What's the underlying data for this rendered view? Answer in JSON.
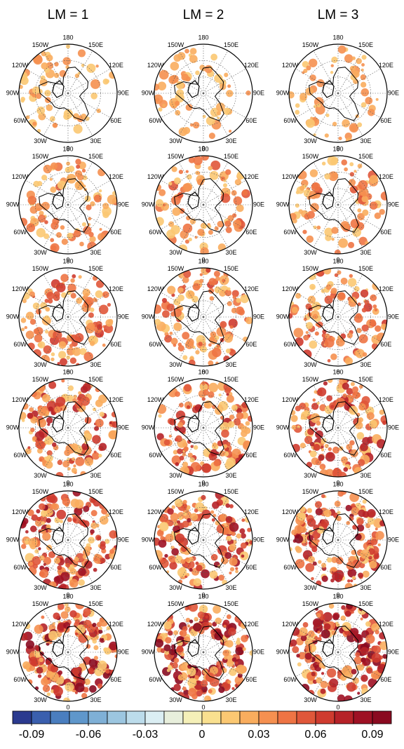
{
  "columns": [
    "LM = 1",
    "LM = 2",
    "LM = 3"
  ],
  "lon_labels": [
    "180",
    "150E",
    "120E",
    "90E",
    "60E",
    "30E",
    "0",
    "30W",
    "60W",
    "90W",
    "120W",
    "150W"
  ],
  "colorbar": {
    "lim": [
      -0.1,
      0.1
    ],
    "ticks": [
      -0.09,
      -0.06,
      -0.03,
      0,
      0.03,
      0.06,
      0.09
    ],
    "colors": [
      "#2b3a8f",
      "#3a5fae",
      "#4a7ebf",
      "#5f97cb",
      "#7fb0d6",
      "#9cc6e0",
      "#bcdceb",
      "#dbeef3",
      "#e8efdc",
      "#f5f0b8",
      "#f9e08f",
      "#fbc872",
      "#f9ad5e",
      "#f59050",
      "#ee7444",
      "#e0573a",
      "#cf3b2f",
      "#b62228",
      "#9e1124",
      "#8a0a20"
    ]
  }
}
